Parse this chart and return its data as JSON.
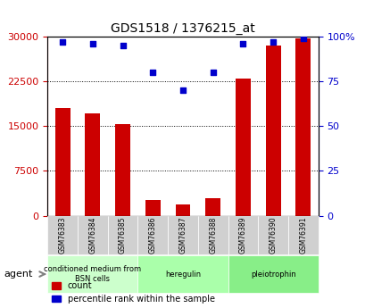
{
  "title": "GDS1518 / 1376215_at",
  "categories": [
    "GSM76383",
    "GSM76384",
    "GSM76385",
    "GSM76386",
    "GSM76387",
    "GSM76388",
    "GSM76389",
    "GSM76390",
    "GSM76391"
  ],
  "counts": [
    18000,
    17200,
    15400,
    2600,
    1800,
    2900,
    23000,
    28500,
    29800
  ],
  "percentiles": [
    97,
    96,
    95,
    80,
    70,
    80,
    96,
    97,
    99
  ],
  "bar_color": "#cc0000",
  "dot_color": "#0000cc",
  "left_yticks": [
    0,
    7500,
    15000,
    22500,
    30000
  ],
  "right_yticks": [
    0,
    25,
    50,
    75,
    100
  ],
  "ylim_left": [
    0,
    30000
  ],
  "ylim_right": [
    0,
    100
  ],
  "groups": [
    {
      "label": "conditioned medium from\nBSN cells",
      "start": 0,
      "end": 3,
      "color": "#ccffcc"
    },
    {
      "label": "heregulin",
      "start": 3,
      "end": 6,
      "color": "#aaffaa"
    },
    {
      "label": "pleiotrophin",
      "start": 6,
      "end": 9,
      "color": "#88ee88"
    }
  ],
  "agent_label": "agent",
  "legend_items": [
    {
      "color": "#cc0000",
      "label": "count"
    },
    {
      "color": "#0000cc",
      "label": "percentile rank within the sample"
    }
  ],
  "background_color": "#ffffff",
  "grid_color": "#000000",
  "tick_label_color_left": "#cc0000",
  "tick_label_color_right": "#0000cc"
}
